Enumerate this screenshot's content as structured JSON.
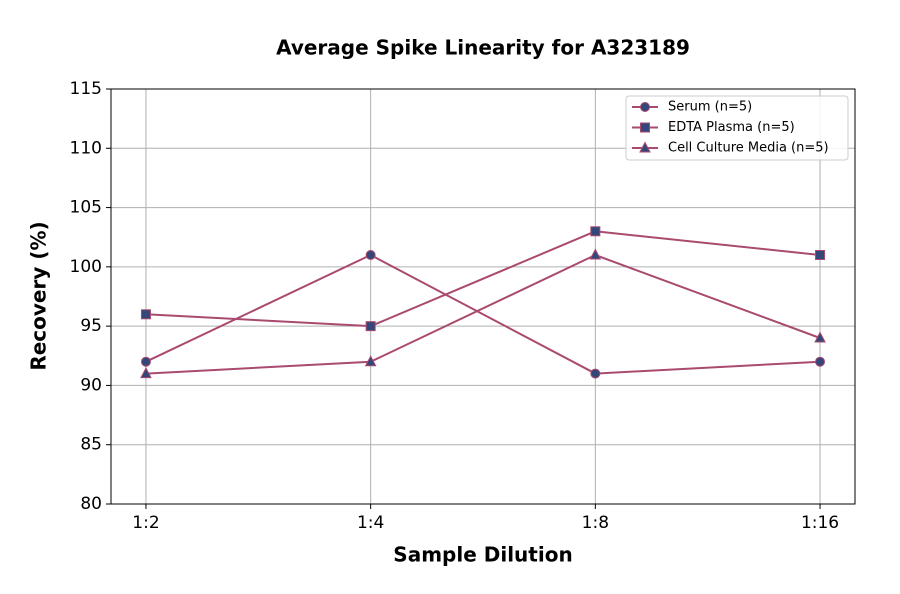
{
  "chart_data": {
    "type": "line",
    "title": "Average Spike Linearity for A323189",
    "x_label": "Sample Dilution",
    "y_label": "Recovery (%)",
    "categories": [
      "1:2",
      "1:4",
      "1:8",
      "1:16"
    ],
    "series": [
      {
        "name": "Serum (n=5)",
        "color": "#a94a6e",
        "marker_color": "#34477a",
        "marker": "circle",
        "values": [
          92,
          101,
          91,
          92
        ]
      },
      {
        "name": "EDTA Plasma (n=5)",
        "color": "#a94a6e",
        "marker_color": "#34477a",
        "marker": "square",
        "values": [
          96,
          95,
          103,
          101
        ]
      },
      {
        "name": "Cell Culture Media (n=5)",
        "color": "#a94a6e",
        "marker_color": "#34477a",
        "marker": "triangle",
        "values": [
          91,
          92,
          101,
          94
        ]
      }
    ],
    "ylim": [
      80,
      115
    ],
    "yticks": [
      80,
      85,
      90,
      95,
      100,
      105,
      110,
      115
    ],
    "grid": true,
    "legend": "upper right"
  }
}
